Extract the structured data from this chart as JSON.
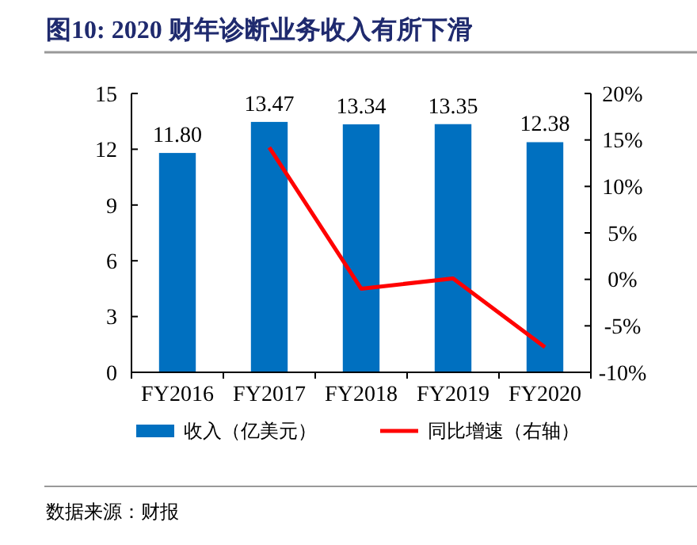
{
  "chart_data": {
    "type": "bar",
    "title": "图10:  2020 财年诊断业务收入有所下滑",
    "categories": [
      "FY2016",
      "FY2017",
      "FY2018",
      "FY2019",
      "FY2020"
    ],
    "series": [
      {
        "name": "收入（亿美元）",
        "color": "#0070c0",
        "values": [
          11.8,
          13.47,
          13.34,
          13.35,
          12.38
        ],
        "value_labels": [
          "11.80",
          "13.47",
          "13.34",
          "13.35",
          "12.38"
        ]
      },
      {
        "name": "同比增速（右轴）",
        "type": "line",
        "axis": "y2",
        "color": "#ff0000",
        "values": [
          null,
          14.2,
          -1.0,
          0.1,
          -7.3
        ]
      }
    ],
    "ylim": [
      0,
      15
    ],
    "yticks": [
      0,
      3,
      6,
      9,
      12,
      15
    ],
    "y2lim": [
      -10,
      20
    ],
    "y2ticks": [
      {
        "value": -10,
        "label": "-10%"
      },
      {
        "value": -5,
        "label": "-5%"
      },
      {
        "value": 0,
        "label": "0%"
      },
      {
        "value": 5,
        "label": "5%"
      },
      {
        "value": 10,
        "label": "10%"
      },
      {
        "value": 15,
        "label": "15%"
      },
      {
        "value": 20,
        "label": "20%"
      }
    ],
    "legend": "bottom",
    "grid": false,
    "marker": "none",
    "annotations": [
      "数据来源：财报"
    ]
  }
}
